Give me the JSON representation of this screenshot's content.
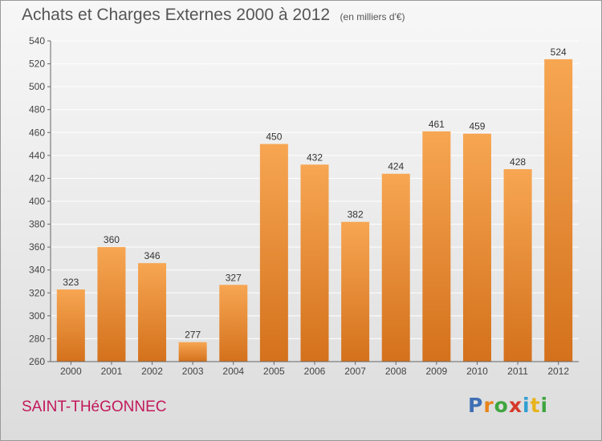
{
  "colors": {
    "bar_light": "#f7a652",
    "bar_dark": "#d4711c",
    "axis": "#666666",
    "grid": "#ffffff",
    "title": "#555555",
    "commune": "#c2185b"
  },
  "chart_data": {
    "type": "bar",
    "title": "Achats et Charges Externes 2000 à 2012",
    "unit": "(en milliers d'€)",
    "xlabel": "",
    "ylabel": "",
    "categories": [
      "2000",
      "2001",
      "2002",
      "2003",
      "2004",
      "2005",
      "2006",
      "2007",
      "2008",
      "2009",
      "2010",
      "2011",
      "2012"
    ],
    "values": [
      323,
      360,
      346,
      277,
      327,
      450,
      432,
      382,
      424,
      461,
      459,
      428,
      524
    ],
    "ylim": [
      260,
      540
    ],
    "yticks": [
      260,
      280,
      300,
      320,
      340,
      360,
      380,
      400,
      420,
      440,
      460,
      480,
      500,
      520,
      540
    ],
    "grid": true,
    "data_labels": true
  },
  "footer": {
    "commune": "SAINT-THéGONNEC",
    "logo": {
      "text": "Proxiti",
      "letter_colors": [
        "#3f6fb5",
        "#e8831c",
        "#3fa53f",
        "#d63a2a",
        "#2f9fd0",
        "#e8b31c",
        "#3fa53f"
      ]
    }
  }
}
